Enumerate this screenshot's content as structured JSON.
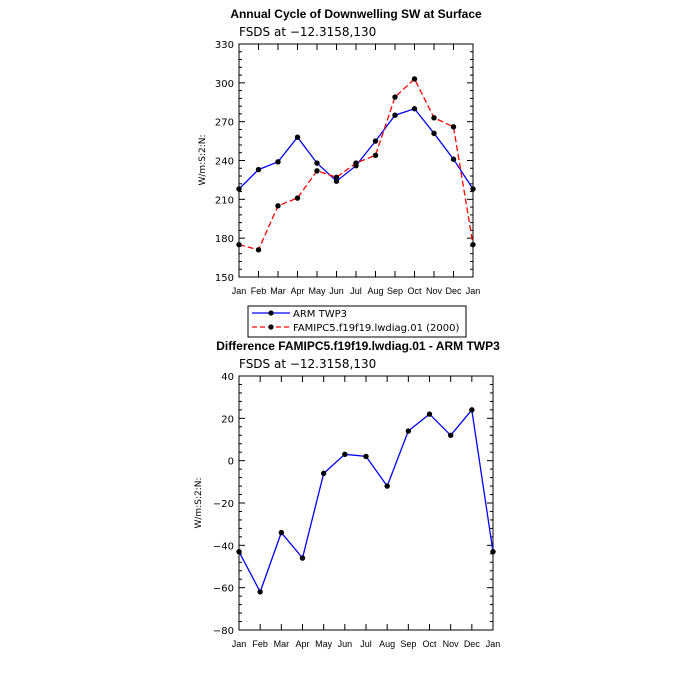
{
  "chart_data": [
    {
      "type": "line",
      "title": "Annual Cycle of Downwelling SW at Surface",
      "subtitle": "FSDS at −12.3158,130",
      "ylabel": "W/m:S:2:N:",
      "xlabel": "",
      "categories": [
        "Jan",
        "Feb",
        "Mar",
        "Apr",
        "May",
        "Jun",
        "Jul",
        "Aug",
        "Sep",
        "Oct",
        "Nov",
        "Dec",
        "Jan"
      ],
      "ylim": [
        150,
        330
      ],
      "yticks": [
        150,
        180,
        210,
        240,
        270,
        300,
        330
      ],
      "legend_position": "bottom",
      "series": [
        {
          "name": "ARM TWP3",
          "color": "#0000ff",
          "dash": "solid",
          "values": [
            218,
            233,
            239,
            258,
            238,
            224,
            236,
            255,
            275,
            280,
            261,
            241,
            218
          ]
        },
        {
          "name": "FAMIPC5.f19f19.lwdiag.01 (2000)",
          "color": "#ff0000",
          "dash": "dashed",
          "values": [
            175,
            171,
            205,
            211,
            232,
            227,
            238,
            244,
            289,
            303,
            273,
            266,
            175
          ]
        }
      ]
    },
    {
      "type": "line",
      "title": "Difference FAMIPC5.f19f19.lwdiag.01 - ARM TWP3",
      "subtitle": "FSDS at −12.3158,130",
      "ylabel": "W/m:S:2:N:",
      "xlabel": "",
      "categories": [
        "Jan",
        "Feb",
        "Mar",
        "Apr",
        "May",
        "Jun",
        "Jul",
        "Aug",
        "Sep",
        "Oct",
        "Nov",
        "Dec",
        "Jan"
      ],
      "ylim": [
        -80,
        40
      ],
      "yticks": [
        -80,
        -60,
        -40,
        -20,
        0,
        20,
        40
      ],
      "series": [
        {
          "name": "Difference",
          "color": "#0000ff",
          "dash": "solid",
          "values": [
            -43,
            -62,
            -34,
            -46,
            -6,
            3,
            2,
            -12,
            14,
            22,
            12,
            24,
            -43
          ]
        }
      ]
    }
  ]
}
